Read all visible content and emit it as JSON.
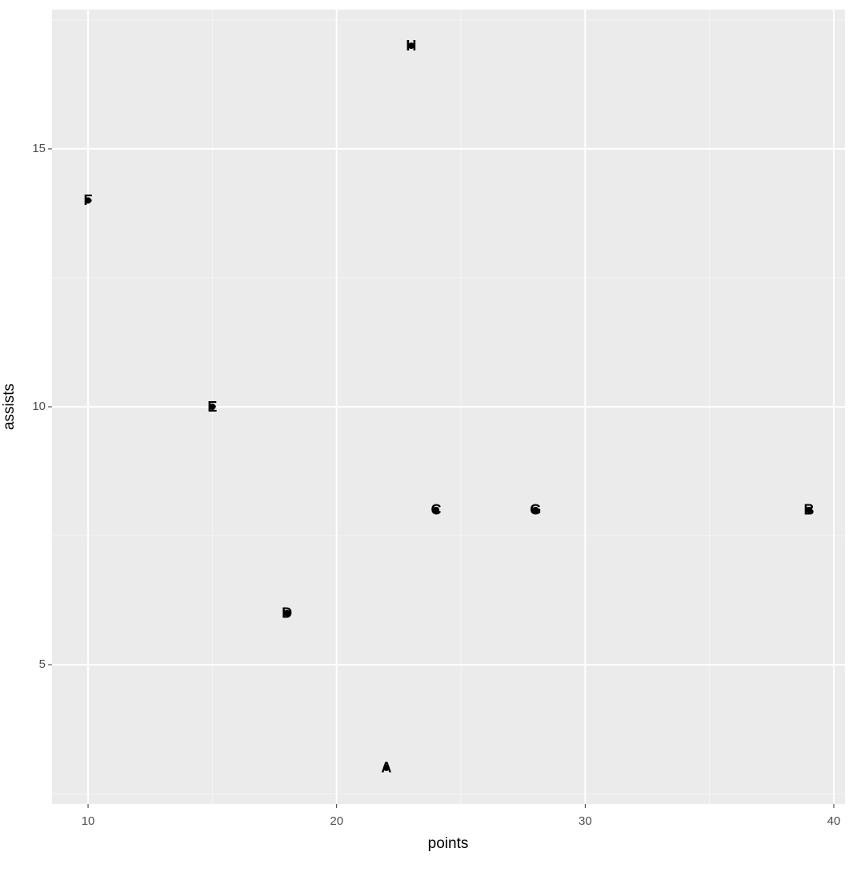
{
  "chart_data": {
    "type": "scatter",
    "x_label": "points",
    "y_label": "assists",
    "labels": [
      "A",
      "B",
      "C",
      "D",
      "E",
      "F",
      "G",
      "H"
    ],
    "x": [
      22,
      39,
      24,
      18,
      15,
      10,
      28,
      23
    ],
    "y": [
      3,
      8,
      8,
      6,
      10,
      14,
      8,
      17
    ],
    "color": "#000000",
    "xlim": [
      8.55,
      40.45
    ],
    "ylim": [
      2.3,
      17.7
    ],
    "xticks": [
      10,
      20,
      30,
      40
    ],
    "yticks": [
      5,
      10,
      15
    ],
    "grid": true
  }
}
